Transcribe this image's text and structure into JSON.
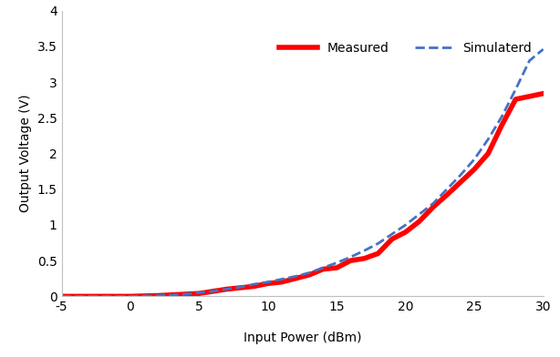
{
  "chart_data": {
    "type": "line",
    "x_label": "Input Power (dBm)",
    "y_label": "Output Voltage (V)",
    "x": [
      -5,
      -4,
      -3,
      -2,
      -1,
      0,
      1,
      2,
      3,
      4,
      5,
      6,
      7,
      8,
      9,
      10,
      11,
      12,
      13,
      14,
      15,
      16,
      17,
      18,
      19,
      20,
      21,
      22,
      23,
      24,
      25,
      26,
      27,
      28,
      29,
      30
    ],
    "series": [
      {
        "name": "Measured",
        "color": "#ff0000",
        "line_style": "solid",
        "values": [
          0,
          0,
          0,
          0,
          0,
          0,
          0.005,
          0.01,
          0.02,
          0.03,
          0.04,
          0.07,
          0.1,
          0.12,
          0.14,
          0.18,
          0.2,
          0.25,
          0.3,
          0.38,
          0.4,
          0.5,
          0.53,
          0.6,
          0.8,
          0.9,
          1.05,
          1.25,
          1.42,
          1.6,
          1.78,
          2.0,
          2.4,
          2.76,
          2.8,
          2.84
        ]
      },
      {
        "name": "Simulaterd",
        "color": "#4472c4",
        "line_style": "dashed",
        "values": [
          0,
          0,
          0,
          0,
          0,
          0,
          0.005,
          0.01,
          0.02,
          0.03,
          0.05,
          0.07,
          0.1,
          0.13,
          0.17,
          0.2,
          0.24,
          0.28,
          0.33,
          0.4,
          0.47,
          0.55,
          0.64,
          0.74,
          0.87,
          1.0,
          1.15,
          1.3,
          1.5,
          1.7,
          1.92,
          2.2,
          2.52,
          2.9,
          3.3,
          3.46
        ]
      }
    ],
    "xlim": [
      -5,
      30
    ],
    "xticks": [
      -5,
      0,
      5,
      10,
      15,
      20,
      25,
      30
    ],
    "ylim": [
      0,
      4
    ],
    "yticks": [
      0,
      0.5,
      1,
      1.5,
      2,
      2.5,
      3,
      3.5,
      4
    ],
    "grid": false,
    "legend": "upper right"
  }
}
